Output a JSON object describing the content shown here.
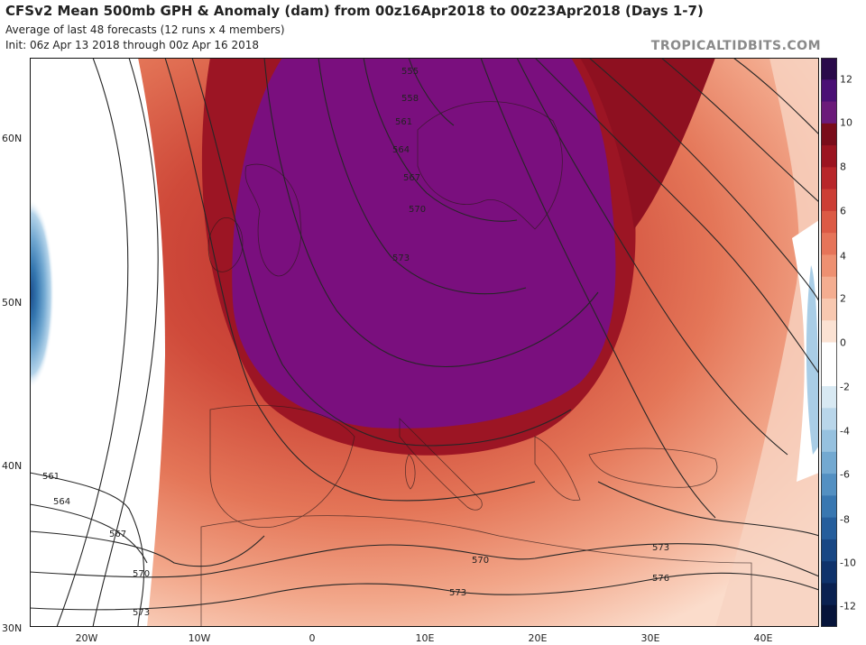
{
  "header": {
    "title": "CFSv2 Mean 500mb GPH & Anomaly (dam) from 00z16Apr2018 to 00z23Apr2018 (Days 1-7)",
    "subtitle1": "Average of last 48 forecasts (12 runs x 4 members)",
    "subtitle2": "Init: 06z Apr 13 2018 through 00z Apr 16 2018",
    "brand": "TROPICALTIDBITS.COM"
  },
  "map": {
    "lat_labels": [
      "60N",
      "50N",
      "40N",
      "30N"
    ],
    "lon_labels": [
      "20W",
      "10W",
      "0",
      "10E",
      "20E",
      "30E",
      "40E"
    ],
    "contour_labels": [
      "555",
      "558",
      "561",
      "564",
      "567",
      "570",
      "573",
      "561",
      "564",
      "567",
      "570",
      "573",
      "570",
      "573",
      "573",
      "576"
    ]
  },
  "colorbar": {
    "labels": [
      "12",
      "10",
      "8",
      "6",
      "4",
      "2",
      "0",
      "-2",
      "-4",
      "-6",
      "-8",
      "-10",
      "-12"
    ],
    "colors": [
      "#2a0a4a",
      "#4a1075",
      "#6b1a7a",
      "#7a0c1a",
      "#9b1420",
      "#b8262a",
      "#cc3e35",
      "#dc5a45",
      "#e67459",
      "#ee9071",
      "#f4ad90",
      "#f8c8b0",
      "#fbe2d3",
      "#ffffff",
      "#ffffff",
      "#d8e9f3",
      "#b9d6ea",
      "#96c1df",
      "#73a9d1",
      "#5390c2",
      "#3877b1",
      "#255e9c",
      "#184784",
      "#0f326b",
      "#0a2151",
      "#06143a"
    ]
  }
}
